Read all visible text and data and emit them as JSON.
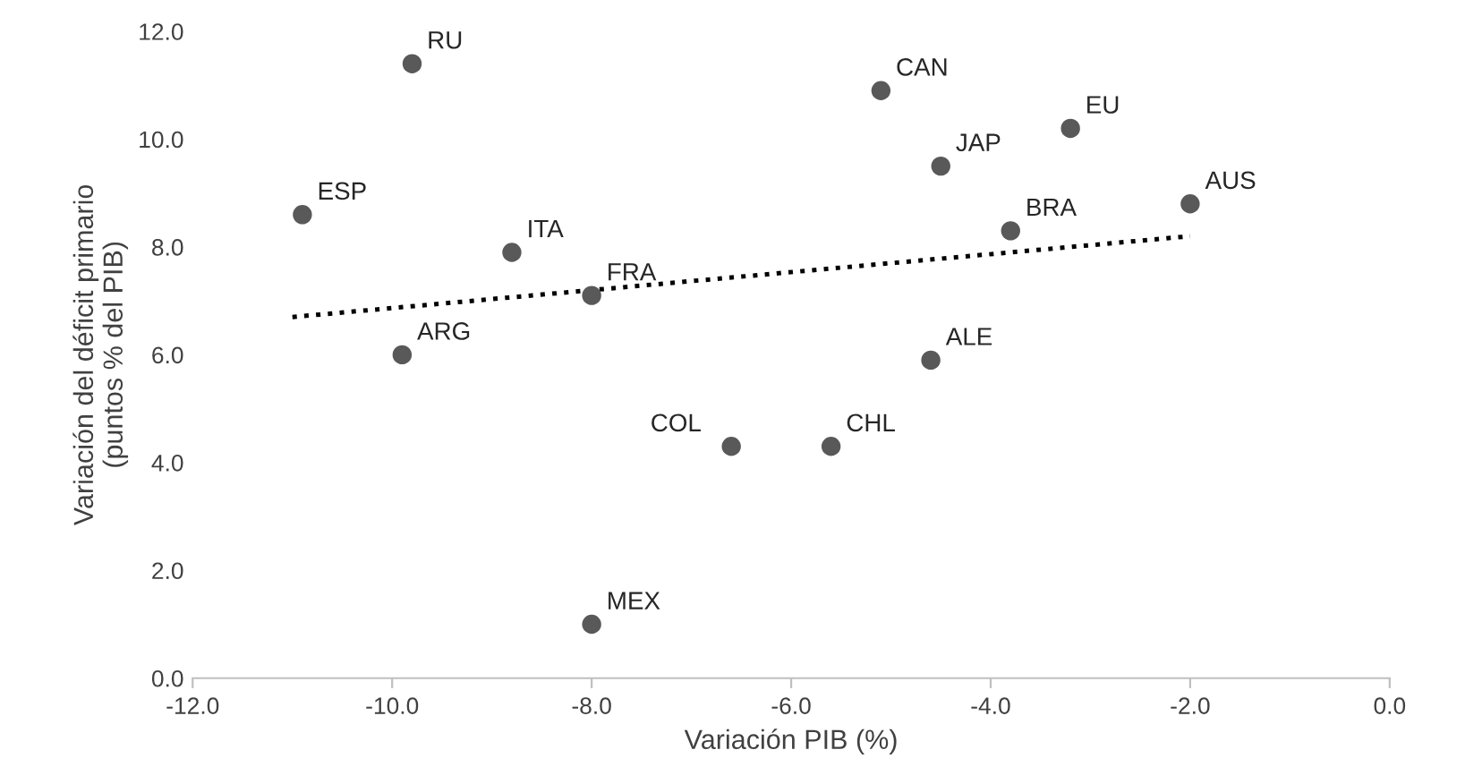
{
  "chart_data": {
    "type": "scatter",
    "xlabel": "Variación PIB (%)",
    "ylabel": "Variación del déficit primario\n(puntos % del PIB)",
    "xlim": [
      -12,
      0
    ],
    "ylim": [
      0,
      12
    ],
    "xticks": [
      {
        "value": -12,
        "label": "-12.0"
      },
      {
        "value": -10,
        "label": "-10.0"
      },
      {
        "value": -8,
        "label": "-8.0"
      },
      {
        "value": -6,
        "label": "-6.0"
      },
      {
        "value": -4,
        "label": "-4.0"
      },
      {
        "value": -2,
        "label": "-2.0"
      },
      {
        "value": 0,
        "label": "0.0"
      }
    ],
    "yticks": [
      {
        "value": 0,
        "label": "0.0"
      },
      {
        "value": 2,
        "label": "2.0"
      },
      {
        "value": 4,
        "label": "4.0"
      },
      {
        "value": 6,
        "label": "6.0"
      },
      {
        "value": 8,
        "label": "8.0"
      },
      {
        "value": 10,
        "label": "10.0"
      },
      {
        "value": 12,
        "label": "12.0"
      }
    ],
    "grid": false,
    "legend": false,
    "marker": "circle",
    "series": [
      {
        "color": "#595959",
        "x": [
          -9.8,
          -10.9,
          -8.8,
          -8.0,
          -9.9,
          -8.0,
          -6.6,
          -5.6,
          -4.6,
          -5.1,
          -4.5,
          -3.2,
          -3.8,
          -2.0
        ],
        "values": [
          11.4,
          8.6,
          7.9,
          7.1,
          6.0,
          1.0,
          4.3,
          4.3,
          5.9,
          10.9,
          9.5,
          10.2,
          8.3,
          8.8
        ]
      },
      {
        "type": "line",
        "color": "#000000",
        "line_style": "dotted",
        "marker": "none",
        "x": [
          -11,
          -2
        ],
        "values": [
          6.7,
          8.2
        ]
      }
    ],
    "annotations": [
      {
        "text": "RU",
        "x": -9.8,
        "y": 11.4
      },
      {
        "text": "ESP",
        "x": -10.9,
        "y": 8.6
      },
      {
        "text": "ITA",
        "x": -8.8,
        "y": 7.9
      },
      {
        "text": "FRA",
        "x": -8.0,
        "y": 7.1
      },
      {
        "text": "ARG",
        "x": -9.9,
        "y": 6.0
      },
      {
        "text": "MEX",
        "x": -8.0,
        "y": 1.0
      },
      {
        "text": "COL",
        "x": -6.6,
        "y": 4.3
      },
      {
        "text": "CHL",
        "x": -5.6,
        "y": 4.3
      },
      {
        "text": "ALE",
        "x": -4.6,
        "y": 5.9
      },
      {
        "text": "CAN",
        "x": -5.1,
        "y": 10.9
      },
      {
        "text": "JAP",
        "x": -4.5,
        "y": 9.5
      },
      {
        "text": "EU",
        "x": -3.2,
        "y": 10.2
      },
      {
        "text": "BRA",
        "x": -3.8,
        "y": 8.3
      },
      {
        "text": "AUS",
        "x": -2.0,
        "y": 8.8
      }
    ]
  }
}
